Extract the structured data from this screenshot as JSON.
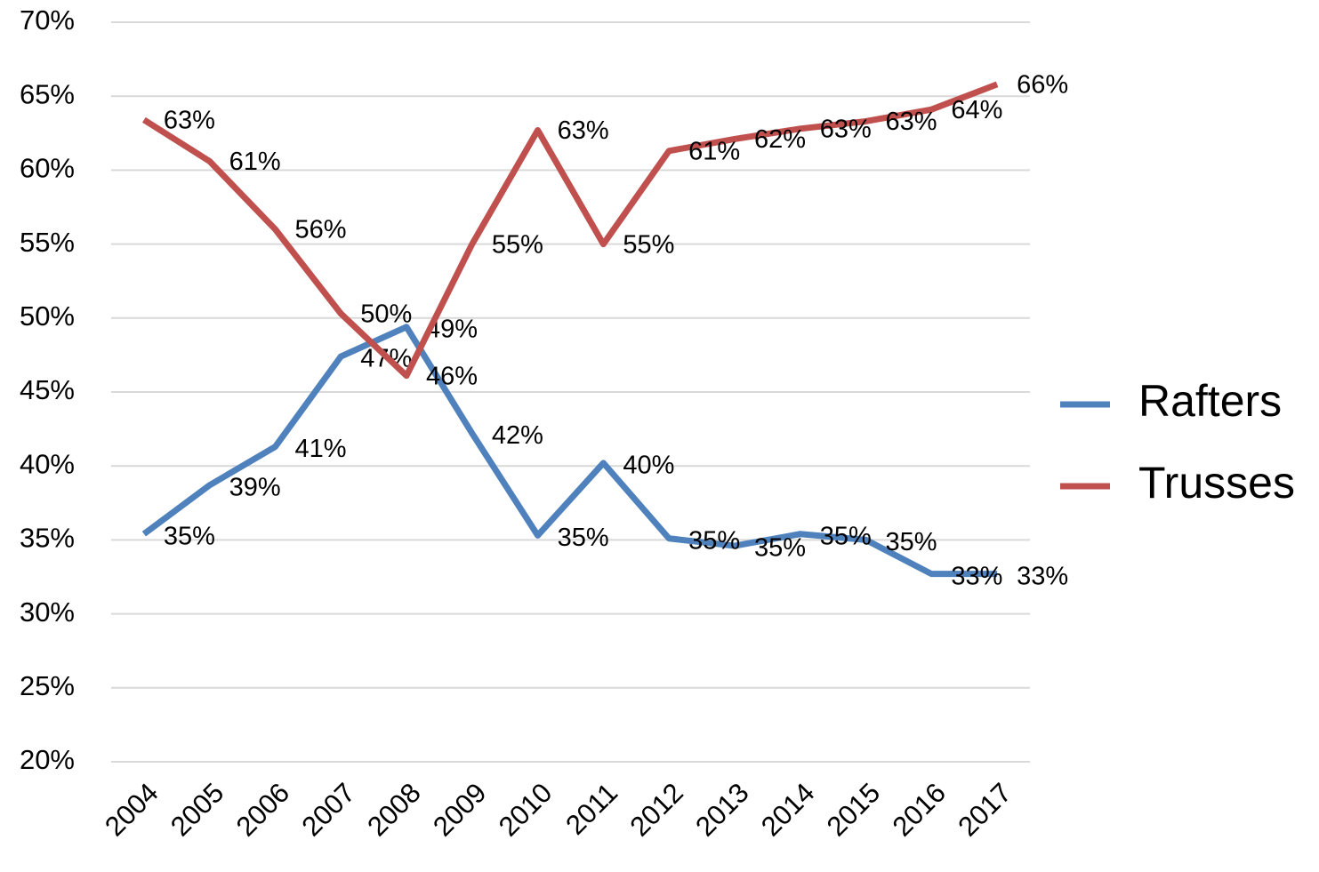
{
  "chart_data": {
    "type": "line",
    "categories": [
      "2004",
      "2005",
      "2006",
      "2007",
      "2008",
      "2009",
      "2010",
      "2011",
      "2012",
      "2013",
      "2014",
      "2015",
      "2016",
      "2017"
    ],
    "series": [
      {
        "name": "Rafters",
        "color": "#4f81bd",
        "values": [
          35.4,
          38.7,
          41.3,
          47.4,
          49.4,
          42.2,
          35.3,
          40.2,
          35.1,
          34.6,
          35.4,
          35.0,
          32.7,
          32.7
        ],
        "value_labels": [
          "35%",
          "39%",
          "41%",
          "47%",
          "49%",
          "42%",
          "35%",
          "40%",
          "35%",
          "35%",
          "35%",
          "35%",
          "33%",
          "33%"
        ]
      },
      {
        "name": "Trusses",
        "color": "#c0504d",
        "values": [
          63.4,
          60.6,
          56.0,
          50.3,
          46.1,
          55.0,
          62.7,
          55.0,
          61.3,
          62.1,
          62.8,
          63.3,
          64.1,
          65.8
        ],
        "value_labels": [
          "63%",
          "61%",
          "56%",
          "50%",
          "46%",
          "55%",
          "63%",
          "55%",
          "61%",
          "62%",
          "63%",
          "63%",
          "64%",
          "66%"
        ]
      }
    ],
    "ylim": [
      20,
      70
    ],
    "yticks": [
      {
        "value": 20,
        "label": "20%"
      },
      {
        "value": 25,
        "label": "25%"
      },
      {
        "value": 30,
        "label": "30%"
      },
      {
        "value": 35,
        "label": "35%"
      },
      {
        "value": 40,
        "label": "40%"
      },
      {
        "value": 45,
        "label": "45%"
      },
      {
        "value": 50,
        "label": "50%"
      },
      {
        "value": 55,
        "label": "55%"
      },
      {
        "value": 60,
        "label": "60%"
      },
      {
        "value": 65,
        "label": "65%"
      },
      {
        "value": 70,
        "label": "70%"
      }
    ],
    "grid": true,
    "legend": "right"
  }
}
